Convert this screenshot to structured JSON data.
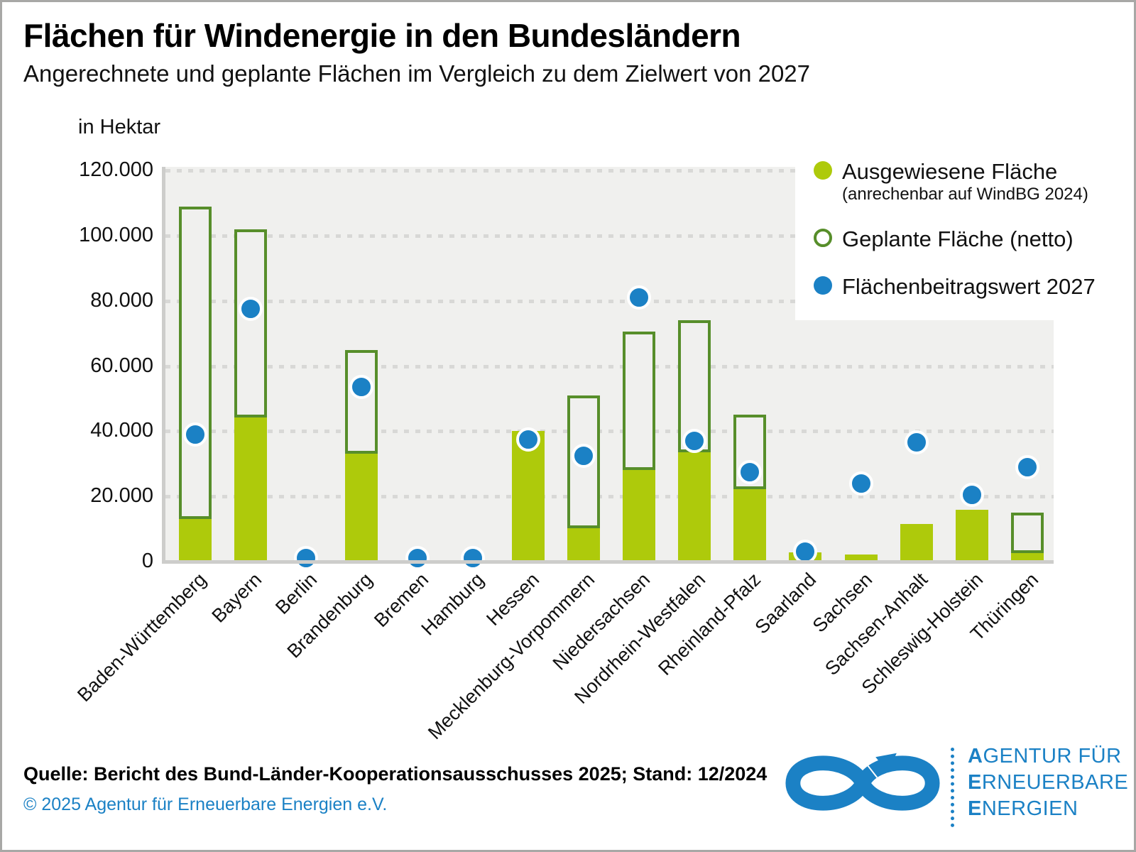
{
  "title": "Flächen für Windenergie in den Bundesländern",
  "subtitle": "Angerechnete und geplante Flächen im Vergleich zu dem Zielwert von 2027",
  "y_axis_unit": "in Hektar",
  "legend": {
    "items": [
      {
        "label": "Ausgewiesene Fläche",
        "sublabel": "(anrechenbar auf WindBG 2024)",
        "marker": "filled-green-circle",
        "color": "#aeca0b"
      },
      {
        "label": "Geplante Fläche (netto)",
        "marker": "outlined-green-circle",
        "color": "#578e2a"
      },
      {
        "label": "Flächenbeitragswert 2027",
        "marker": "filled-blue-circle",
        "color": "#1b81c5"
      }
    ]
  },
  "footer": {
    "source": "Quelle: Bericht des Bund-Länder-Kooperationsausschusses 2025; Stand: 12/2024",
    "copyright": "© 2025 Agentur für Erneuerbare Energien e.V.",
    "logo_icon": "infinity-arrow",
    "logo_lines": [
      "AGENTUR FÜR",
      "ERNEUERBARE",
      "ENERGIEN"
    ]
  },
  "colors": {
    "bar_fill": "#aeca0b",
    "bar_outline": "#578e2a",
    "dot": "#1b81c5",
    "plot_background": "#f0f0ee",
    "gridline": "#d8d8d6",
    "axis_line": "#cdcdcb",
    "blue_text": "#1b81c5"
  },
  "chart_data": {
    "type": "bar",
    "unit": "Hektar",
    "title": "Flächen für Windenergie in den Bundesländern",
    "xlabel": "",
    "ylabel": "in Hektar",
    "ylim": [
      0,
      120000
    ],
    "ytick_interval": 20000,
    "ytick_labels": [
      "0",
      "20.000",
      "40.000",
      "60.000",
      "80.000",
      "100.000",
      "120.000"
    ],
    "grid": "horizontal-dashed",
    "legend_position": "top-right",
    "categories": [
      "Baden-Württemberg",
      "Bayern",
      "Berlin",
      "Brandenburg",
      "Bremen",
      "Hamburg",
      "Hessen",
      "Mecklenburg-Vorpommern",
      "Niedersachsen",
      "Nordrhein-Westfalen",
      "Rheinland-Pfalz",
      "Saarland",
      "Sachsen",
      "Sachsen-Anhalt",
      "Schleswig-Holstein",
      "Thüringen"
    ],
    "series": [
      {
        "name": "Ausgewiesene Fläche (anrechenbar auf WindBG 2024)",
        "type": "bar",
        "color": "#aeca0b",
        "values": [
          14000,
          45000,
          0,
          34000,
          500,
          500,
          40000,
          11000,
          29000,
          34500,
          23000,
          2800,
          2200,
          11500,
          16000,
          3500
        ]
      },
      {
        "name": "Geplante Fläche (netto)",
        "type": "bar-outline",
        "color": "#578e2a",
        "note": "outlined bar drawn from top of Ausgewiesene Fläche up to this total value; null = no outline shown",
        "values": [
          109000,
          102000,
          null,
          65000,
          null,
          null,
          null,
          51000,
          70500,
          74000,
          45000,
          null,
          null,
          null,
          null,
          15000
        ]
      },
      {
        "name": "Flächenbeitragswert 2027",
        "type": "point",
        "color": "#1b81c5",
        "values": [
          39000,
          77500,
          1000,
          53500,
          1000,
          1000,
          37500,
          32500,
          81000,
          37000,
          27500,
          3000,
          24000,
          36500,
          20500,
          29000
        ]
      }
    ]
  }
}
